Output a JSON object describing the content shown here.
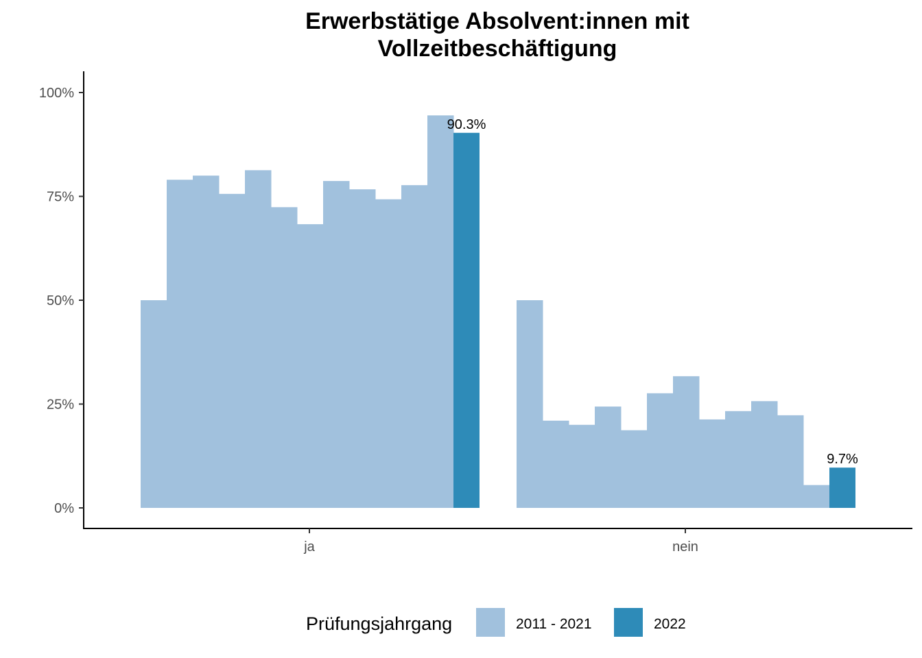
{
  "chart_data": {
    "type": "bar",
    "title_lines": [
      "Erwerbstätige Absolvent:innen mit",
      "Vollzeitbeschäftigung"
    ],
    "categories": [
      "ja",
      "nein"
    ],
    "y_ticks": [
      "0%",
      "25%",
      "50%",
      "75%",
      "100%"
    ],
    "ylim": [
      0,
      105
    ],
    "series": [
      {
        "name": "2011 - 2021",
        "color": "#a1c1dd",
        "values": {
          "ja": [
            50.0,
            79.0,
            80.0,
            75.6,
            81.3,
            72.4,
            68.3,
            78.7,
            76.7,
            74.3,
            77.7,
            94.5
          ],
          "nein": [
            50.0,
            21.0,
            20.0,
            24.4,
            18.7,
            27.6,
            31.7,
            21.3,
            23.3,
            25.7,
            22.3,
            5.5
          ]
        }
      },
      {
        "name": "2022",
        "color": "#2e8bb8",
        "values": {
          "ja": 90.3,
          "nein": 9.7
        }
      }
    ],
    "data_labels": {
      "ja": "90.3%",
      "nein": "9.7%"
    },
    "legend": {
      "title": "Prüfungsjahrgang",
      "placement": "bottom"
    },
    "grid": false
  }
}
